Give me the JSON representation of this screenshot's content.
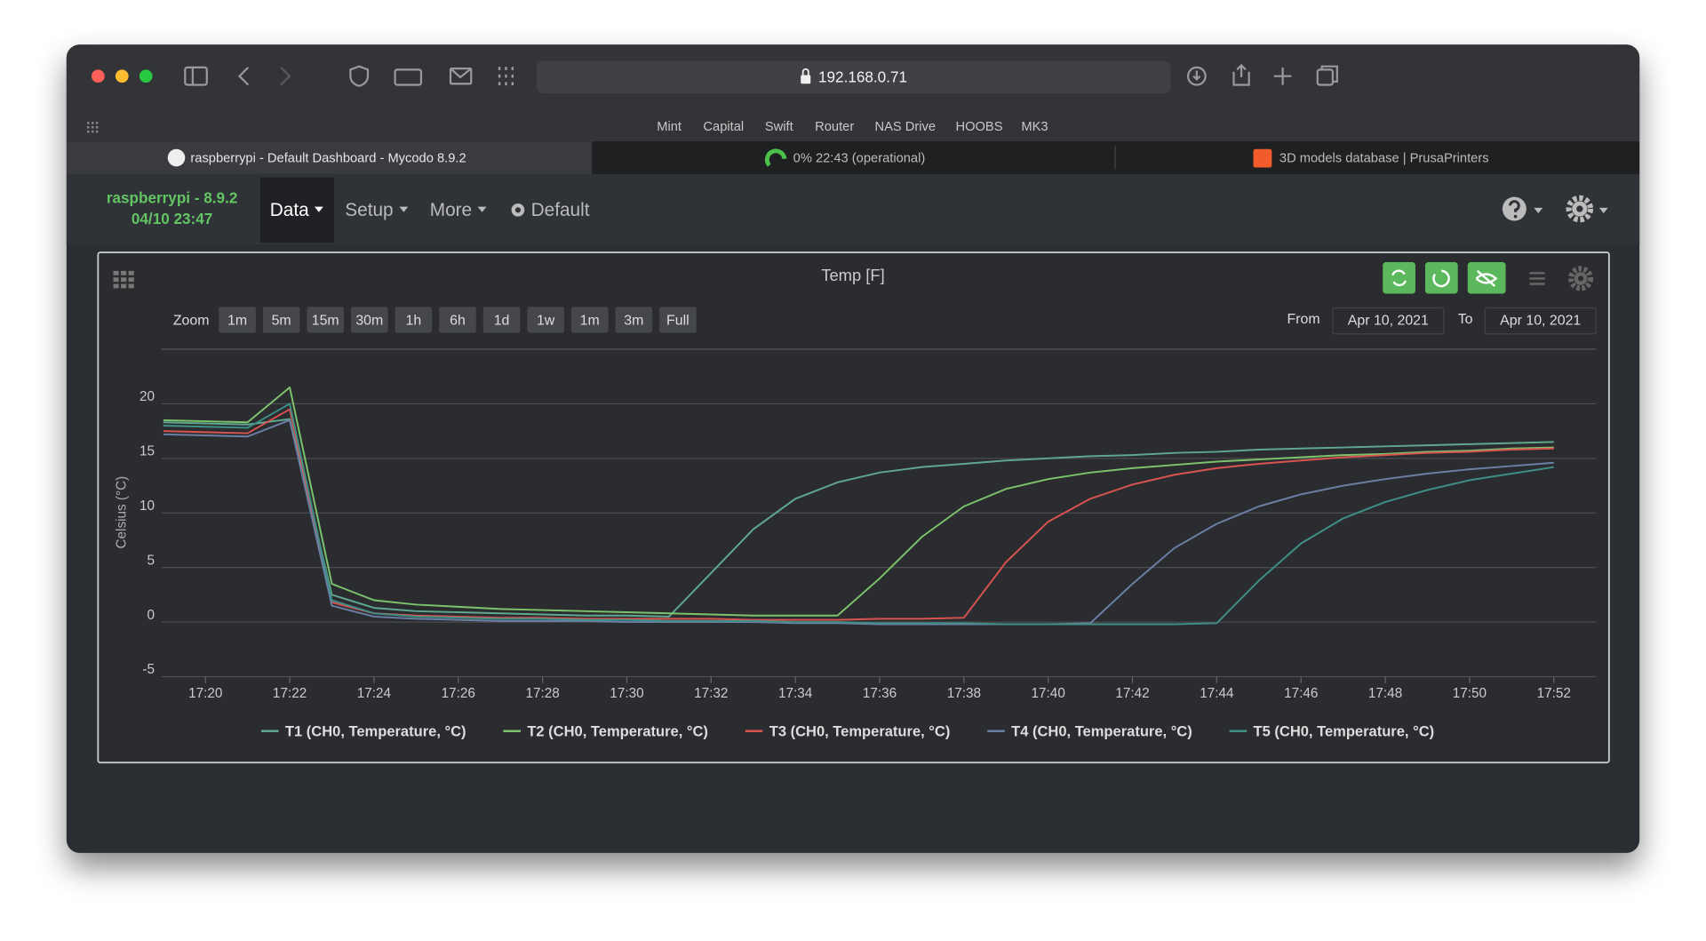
{
  "browser": {
    "url": "192.168.0.71",
    "bookmarks": [
      "Mint",
      "Capital",
      "Swift",
      "Router",
      "NAS Drive",
      "HOOBS",
      "MK3"
    ],
    "tabs": [
      "raspberrypi - Default Dashboard - Mycodo 8.9.2",
      "0% 22:43 (operational)",
      "3D models database | PrusaPrinters"
    ]
  },
  "app": {
    "device": "raspberrypi - 8.9.2",
    "datetime": "04/10 23:47",
    "nav": [
      "Data",
      "Setup",
      "More",
      "Default"
    ]
  },
  "widget": {
    "title": "Temp [F]",
    "zoom_label": "Zoom",
    "zoom_buttons": [
      "1m",
      "5m",
      "15m",
      "30m",
      "1h",
      "6h",
      "1d",
      "1w",
      "1m",
      "3m",
      "Full"
    ],
    "from_label": "From",
    "from_date": "Apr 10, 2021",
    "to_label": "To",
    "to_date": "Apr 10, 2021"
  },
  "chart_data": {
    "type": "line",
    "y_label": "Celsius (°C)",
    "x": [
      "17:19",
      "17:20",
      "17:21",
      "17:22",
      "17:23",
      "17:24",
      "17:25",
      "17:26",
      "17:27",
      "17:28",
      "17:29",
      "17:30",
      "17:31",
      "17:32",
      "17:33",
      "17:34",
      "17:35",
      "17:36",
      "17:37",
      "17:38",
      "17:39",
      "17:40",
      "17:41",
      "17:42",
      "17:43",
      "17:44",
      "17:45",
      "17:46",
      "17:47",
      "17:48",
      "17:49",
      "17:50",
      "17:51",
      "17:52"
    ],
    "xlim": [
      "17:19",
      "17:53"
    ],
    "xticks": [
      "17:20",
      "17:22",
      "17:24",
      "17:26",
      "17:28",
      "17:30",
      "17:32",
      "17:34",
      "17:36",
      "17:38",
      "17:40",
      "17:42",
      "17:44",
      "17:46",
      "17:48",
      "17:50",
      "17:52"
    ],
    "ylim": [
      -5,
      25
    ],
    "yticks": [
      -5,
      0,
      5,
      10,
      15,
      20
    ],
    "grid": true,
    "series": [
      {
        "name": "T1 (CH0, Temperature, °C)",
        "color": "#5fa88e",
        "values": [
          18.3,
          18.2,
          18.1,
          18.6,
          2.5,
          1.3,
          1.0,
          0.9,
          0.8,
          0.7,
          0.6,
          0.6,
          0.5,
          4.5,
          8.5,
          11.3,
          12.8,
          13.7,
          14.2,
          14.5,
          14.8,
          15.0,
          15.2,
          15.3,
          15.5,
          15.6,
          15.8,
          15.9,
          16.0,
          16.1,
          16.2,
          16.3,
          16.4,
          16.5
        ]
      },
      {
        "name": "T2 (CH0, Temperature, °C)",
        "color": "#7cc36c",
        "values": [
          18.5,
          18.4,
          18.3,
          21.5,
          3.5,
          2.0,
          1.6,
          1.4,
          1.2,
          1.1,
          1.0,
          0.9,
          0.8,
          0.7,
          0.6,
          0.6,
          0.6,
          4.0,
          7.8,
          10.6,
          12.2,
          13.1,
          13.7,
          14.1,
          14.4,
          14.7,
          14.9,
          15.1,
          15.3,
          15.4,
          15.6,
          15.7,
          15.9,
          16.0
        ]
      },
      {
        "name": "T3 (CH0, Temperature, °C)",
        "color": "#d9534f",
        "values": [
          17.5,
          17.4,
          17.3,
          19.5,
          1.8,
          0.8,
          0.6,
          0.5,
          0.4,
          0.4,
          0.3,
          0.3,
          0.3,
          0.3,
          0.2,
          0.2,
          0.2,
          0.3,
          0.3,
          0.4,
          5.5,
          9.2,
          11.3,
          12.6,
          13.5,
          14.1,
          14.5,
          14.8,
          15.1,
          15.3,
          15.5,
          15.6,
          15.8,
          15.9
        ]
      },
      {
        "name": "T4 (CH0, Temperature, °C)",
        "color": "#6b7fa6",
        "values": [
          17.2,
          17.1,
          17.0,
          18.5,
          1.5,
          0.5,
          0.3,
          0.2,
          0.1,
          0.1,
          0.1,
          0.0,
          0.0,
          0.0,
          0.0,
          -0.1,
          -0.1,
          -0.2,
          -0.2,
          -0.2,
          -0.2,
          -0.2,
          -0.1,
          3.5,
          6.8,
          9.0,
          10.6,
          11.7,
          12.5,
          13.1,
          13.6,
          14.0,
          14.3,
          14.6
        ]
      },
      {
        "name": "T5 (CH0, Temperature, °C)",
        "color": "#3f8f86",
        "values": [
          18.0,
          17.9,
          17.8,
          20.0,
          2.0,
          0.8,
          0.5,
          0.4,
          0.3,
          0.3,
          0.2,
          0.2,
          0.1,
          0.1,
          0.1,
          0.0,
          0.0,
          -0.1,
          -0.1,
          -0.1,
          -0.2,
          -0.2,
          -0.2,
          -0.2,
          -0.2,
          -0.1,
          3.8,
          7.2,
          9.5,
          11.0,
          12.1,
          13.0,
          13.6,
          14.2
        ]
      }
    ]
  }
}
